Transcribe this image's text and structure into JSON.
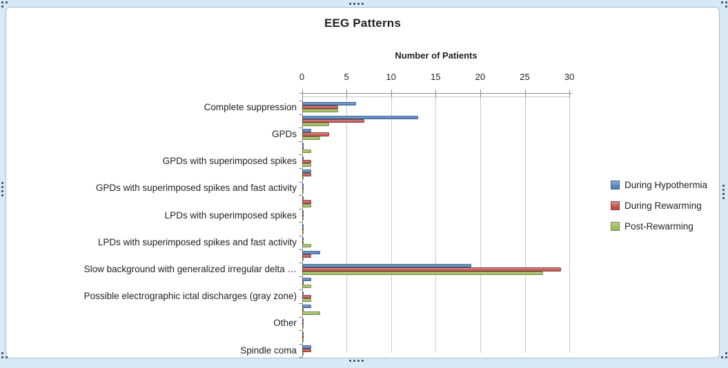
{
  "chart": {
    "title": "EEG Patterns",
    "axis_title": "Number of Patients"
  },
  "chart_data": {
    "type": "bar",
    "orientation": "horizontal",
    "title": "EEG Patterns",
    "xlabel": "Number of Patients",
    "xlim": [
      0,
      30
    ],
    "xticks": [
      0,
      5,
      10,
      15,
      20,
      25,
      30
    ],
    "grid": true,
    "legend_position": "right",
    "categories": [
      "Complete suppression",
      "",
      "GPDs",
      "",
      "GPDs with superimposed spikes",
      "",
      "GPDs with superimposed spikes and fast activity",
      "",
      "LPDs with superimposed spikes",
      "",
      "LPDs with superimposed spikes and fast activity",
      "",
      "Slow background with generalized irregular delta …",
      "",
      "Possible electrographic ictal discharges (gray zone)",
      "",
      "Other",
      "",
      "Spindle coma"
    ],
    "series": [
      {
        "name": "During Hypothermia",
        "color": "#4f81bd",
        "values": [
          6,
          13,
          1,
          0,
          0,
          1,
          0,
          0,
          0,
          0,
          0,
          2,
          19,
          1,
          0,
          1,
          0,
          0,
          1
        ]
      },
      {
        "name": "During Rewarming",
        "color": "#c0504d",
        "values": [
          4,
          7,
          3,
          0,
          1,
          1,
          0,
          1,
          0,
          0,
          0,
          1,
          29,
          0,
          1,
          0,
          0,
          0,
          1
        ]
      },
      {
        "name": "Post-Rewarming",
        "color": "#9bbb59",
        "values": [
          4,
          3,
          2,
          1,
          1,
          0,
          0,
          1,
          0,
          0,
          1,
          0,
          27,
          1,
          1,
          2,
          0,
          0,
          0
        ]
      }
    ]
  }
}
